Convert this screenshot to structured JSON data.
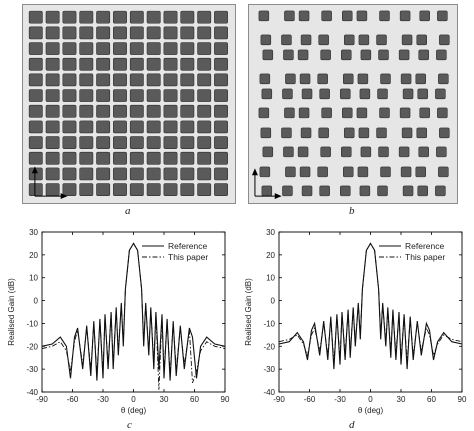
{
  "figure": {
    "panels": [
      {
        "id": "a",
        "label": "a",
        "kind": "uniform-square-lattice",
        "rows": 12,
        "cols": 12
      },
      {
        "id": "b",
        "label": "b",
        "kind": "sparse-square-lattice",
        "rows": 10,
        "cols": 10
      },
      {
        "id": "c",
        "label": "c"
      },
      {
        "id": "d",
        "label": "d"
      }
    ],
    "colors": {
      "element": "#5a5a5a",
      "element_edge": "#2e2e2e",
      "substrate": "#e6e6e6"
    }
  },
  "chart_data": [
    {
      "type": "line",
      "panel": "c",
      "xlabel": "θ (deg)",
      "ylabel": "Realised Gain (dB)",
      "xlim": [
        -90,
        90
      ],
      "ylim": [
        -40,
        30
      ],
      "xticks": [
        -90,
        -60,
        -30,
        0,
        30,
        60,
        90
      ],
      "yticks": [
        -40,
        -30,
        -20,
        -10,
        0,
        10,
        20,
        30
      ],
      "xtick_labels": [
        "-90",
        "-60",
        "-30",
        "0",
        "30",
        "60",
        "90"
      ],
      "ytick_labels": [
        "-40",
        "-30",
        "-20",
        "-10",
        "0",
        "10",
        "20",
        "30"
      ],
      "legend_position": "top-right",
      "series": [
        {
          "name": "Reference",
          "style": "solid",
          "x": [
            -90,
            -80,
            -72,
            -66,
            -62,
            -58,
            -55,
            -50,
            -46,
            -42,
            -39,
            -36,
            -33,
            -30,
            -28,
            -25,
            -22,
            -20,
            -17,
            -15,
            -12,
            -10,
            -8,
            -4,
            0,
            4,
            8,
            10,
            12,
            15,
            17,
            20,
            22,
            25,
            28,
            30,
            33,
            36,
            39,
            42,
            46,
            50,
            55,
            58,
            62,
            66,
            72,
            80,
            90
          ],
          "y": [
            -20,
            -19,
            -16,
            -20,
            -34,
            -16,
            -12,
            -30,
            -11,
            -33,
            -9,
            -35,
            -8,
            -34,
            -6,
            -30,
            -5,
            -30,
            -3,
            -24,
            -1,
            -20,
            5,
            22,
            25,
            22,
            5,
            -20,
            -1,
            -24,
            -3,
            -30,
            -5,
            -30,
            -6,
            -34,
            -8,
            -35,
            -9,
            -33,
            -11,
            -30,
            -12,
            -16,
            -34,
            -20,
            -16,
            -19,
            -20
          ]
        },
        {
          "name": "This paper",
          "style": "dash-dot",
          "x": [
            -90,
            -80,
            -72,
            -66,
            -62,
            -58,
            -55,
            -50,
            -46,
            -42,
            -39,
            -36,
            -33,
            -30,
            -28,
            -25,
            -22,
            -20,
            -17,
            -15,
            -12,
            -10,
            -8,
            -4,
            0,
            4,
            8,
            10,
            12,
            15,
            17,
            20,
            22,
            25,
            28,
            30,
            33,
            36,
            39,
            42,
            46,
            50,
            55,
            58,
            62,
            66,
            72,
            80,
            90
          ],
          "y": [
            -21,
            -20,
            -18,
            -22,
            -31,
            -18,
            -13,
            -28,
            -12,
            -30,
            -10,
            -32,
            -9,
            -31,
            -7,
            -28,
            -6,
            -27,
            -4,
            -22,
            -2,
            -18,
            5,
            22,
            25,
            22,
            5,
            -18,
            -2,
            -22,
            -4,
            -27,
            -6,
            -39,
            -7,
            -31,
            -9,
            -32,
            -10,
            -30,
            -12,
            -28,
            -13,
            -36,
            -31,
            -22,
            -18,
            -20,
            -21
          ]
        }
      ]
    },
    {
      "type": "line",
      "panel": "d",
      "xlabel": "θ (deg)",
      "ylabel": "Realised Gain (dB)",
      "xlim": [
        -90,
        90
      ],
      "ylim": [
        -40,
        30
      ],
      "xticks": [
        -90,
        -60,
        -30,
        0,
        30,
        60,
        90
      ],
      "yticks": [
        -40,
        -30,
        -20,
        -10,
        0,
        10,
        20,
        30
      ],
      "xtick_labels": [
        "-90",
        "-60",
        "-30",
        "0",
        "30",
        "60",
        "90"
      ],
      "ytick_labels": [
        "-40",
        "-30",
        "-20",
        "-10",
        "0",
        "10",
        "20",
        "30"
      ],
      "legend_position": "top-right",
      "series": [
        {
          "name": "Reference",
          "style": "solid",
          "x": [
            -90,
            -80,
            -72,
            -66,
            -62,
            -58,
            -55,
            -50,
            -46,
            -42,
            -39,
            -36,
            -33,
            -30,
            -28,
            -25,
            -22,
            -20,
            -17,
            -15,
            -12,
            -10,
            -8,
            -4,
            0,
            4,
            8,
            10,
            12,
            15,
            17,
            20,
            22,
            25,
            28,
            30,
            33,
            36,
            39,
            42,
            46,
            50,
            55,
            58,
            62,
            66,
            72,
            80,
            90
          ],
          "y": [
            -19,
            -18,
            -14,
            -18,
            -26,
            -13,
            -10,
            -24,
            -9,
            -26,
            -7,
            -30,
            -6,
            -28,
            -5,
            -26,
            -4,
            -25,
            -3,
            -20,
            -1,
            -17,
            5,
            22,
            25,
            22,
            5,
            -17,
            -1,
            -20,
            -3,
            -25,
            -4,
            -26,
            -5,
            -28,
            -6,
            -30,
            -7,
            -26,
            -9,
            -24,
            -10,
            -13,
            -26,
            -18,
            -14,
            -18,
            -19
          ]
        },
        {
          "name": "This paper",
          "style": "dash-dot",
          "x": [
            -90,
            -80,
            -72,
            -66,
            -62,
            -58,
            -55,
            -50,
            -46,
            -42,
            -39,
            -36,
            -33,
            -30,
            -28,
            -25,
            -22,
            -20,
            -17,
            -15,
            -12,
            -10,
            -8,
            -4,
            0,
            4,
            8,
            10,
            12,
            15,
            17,
            20,
            22,
            25,
            28,
            30,
            33,
            36,
            39,
            42,
            46,
            50,
            55,
            58,
            62,
            66,
            72,
            80,
            90
          ],
          "y": [
            -18,
            -17,
            -15,
            -19,
            -24,
            -15,
            -12,
            -22,
            -10,
            -24,
            -8,
            -27,
            -7,
            -25,
            -6,
            -23,
            -5,
            -22,
            -4,
            -18,
            -2,
            -15,
            5,
            22,
            25,
            22,
            5,
            -15,
            -2,
            -18,
            -4,
            -22,
            -5,
            -23,
            -6,
            -25,
            -7,
            -27,
            -8,
            -24,
            -10,
            -22,
            -12,
            -15,
            -24,
            -19,
            -15,
            -17,
            -18
          ]
        }
      ]
    }
  ]
}
